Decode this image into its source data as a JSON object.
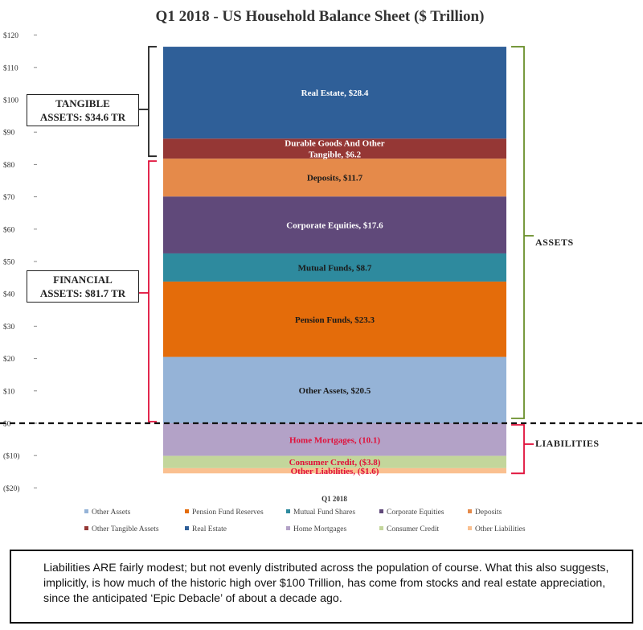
{
  "chart_data": {
    "type": "bar",
    "stacked": true,
    "title": "Q1 2018 - US Household Balance Sheet ($ Trillion)",
    "categories": [
      "Q1 2018"
    ],
    "ylim": [
      -20,
      120
    ],
    "yticks": [
      -20,
      -10,
      0,
      10,
      20,
      30,
      40,
      50,
      60,
      70,
      80,
      90,
      100,
      110,
      120
    ],
    "ytick_labels": [
      "($20)",
      "($10)",
      "$0",
      "$10",
      "$20",
      "$30",
      "$40",
      "$50",
      "$60",
      "$70",
      "$80",
      "$90",
      "$100",
      "$110",
      "$120"
    ],
    "grid": false,
    "legend_position": "bottom",
    "segments": [
      {
        "label": "Other Assets, $20.5",
        "value": 20.5,
        "color": "#95b3d7",
        "text_color": "#1a1a1a"
      },
      {
        "label": "Pension Funds, $23.3",
        "value": 23.3,
        "color": "#e46c0a",
        "text_color": "#1a1a1a"
      },
      {
        "label": "Mutual Funds, $8.7",
        "value": 8.7,
        "color": "#2e8a9e",
        "text_color": "#1a1a1a"
      },
      {
        "label": "Corporate Equities, $17.6",
        "value": 17.6,
        "color": "#60497a",
        "text_color": "#ffffff"
      },
      {
        "label": "Deposits, $11.7",
        "value": 11.7,
        "color": "#e58a4a",
        "text_color": "#1a1a1a"
      },
      {
        "label": "Durable Goods And Other Tangible, $6.2",
        "label_lines": [
          "Durable Goods And Other",
          "Tangible, $6.2"
        ],
        "value": 6.2,
        "color": "#953735",
        "text_color": "#ffffff"
      },
      {
        "label": "Real Estate, $28.4",
        "value": 28.4,
        "color": "#2f5f98",
        "text_color": "#ffffff"
      },
      {
        "label": "Home Mortgages, (10.1)",
        "value": -10.1,
        "color": "#b3a2c7",
        "text_color": "#e0103a"
      },
      {
        "label": "Consumer Credit, ($3.8)",
        "value": -3.8,
        "color": "#c3d69b",
        "text_color": "#e0103a"
      },
      {
        "label": "Other Liabilities, ($1.6)",
        "value": -1.6,
        "color": "#fac090",
        "text_color": "#e0103a"
      }
    ],
    "legend": [
      {
        "name": "Other Assets",
        "color": "#95b3d7"
      },
      {
        "name": "Pension Fund Reserves",
        "color": "#e46c0a"
      },
      {
        "name": "Mutual Fund Shares",
        "color": "#2e8a9e"
      },
      {
        "name": "Corporate Equities",
        "color": "#60497a"
      },
      {
        "name": "Deposits",
        "color": "#e58a4a"
      },
      {
        "name": "Other Tangible Assets",
        "color": "#953735"
      },
      {
        "name": "Real Estate",
        "color": "#2f5f98"
      },
      {
        "name": "Home Mortgages",
        "color": "#b3a2c7"
      },
      {
        "name": "Consumer Credit",
        "color": "#c3d69b"
      },
      {
        "name": "Other Liabilities",
        "color": "#fac090"
      }
    ]
  },
  "annotations": {
    "tangible": {
      "line1": "TANGIBLE",
      "line2": "ASSETS: $34.6 TR",
      "bracket_color": "#222222"
    },
    "financial": {
      "line1": "FINANCIAL",
      "line2": "ASSETS: $81.7 TR",
      "bracket_color": "#e0103a"
    },
    "assets": {
      "label": "ASSETS",
      "bracket_color": "#6a8f2a"
    },
    "liabilities": {
      "label": "LIABILITIES",
      "bracket_color": "#e0103a"
    }
  },
  "note": "Liabilities ARE fairly modest; but not evenly distributed across the population of course. What this also suggests, implicitly, is how much of the historic high over $100 Trillion, has come from stocks and real estate appreciation, since the anticipated ‘Epic Debacle’ of about a decade ago."
}
